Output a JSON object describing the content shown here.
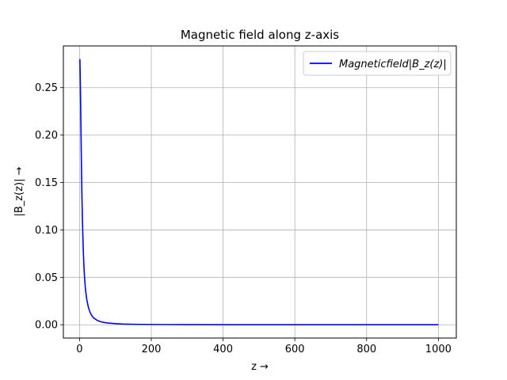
{
  "chart_data": {
    "type": "line",
    "title": "Magnetic field along z-axis",
    "xlabel": "z →",
    "ylabel": "|B_z(z)| →",
    "xlim": [
      -45,
      1050
    ],
    "ylim": [
      -0.014,
      0.294
    ],
    "xticks": [
      0,
      200,
      400,
      600,
      800,
      1000
    ],
    "yticks": [
      0.0,
      0.05,
      0.1,
      0.15,
      0.2,
      0.25
    ],
    "xtick_labels": [
      "0",
      "200",
      "400",
      "600",
      "800",
      "1000"
    ],
    "ytick_labels": [
      "0.00",
      "0.05",
      "0.10",
      "0.15",
      "0.20",
      "0.25"
    ],
    "grid": true,
    "legend": "top-right",
    "series": [
      {
        "name": "Magneticfield|B_z(z)|",
        "color": "#0000ff",
        "x": [
          1,
          2,
          3,
          4,
          5,
          6,
          7,
          8,
          10,
          12,
          14,
          16,
          18,
          20,
          25,
          30,
          35,
          40,
          50,
          60,
          70,
          80,
          100,
          120,
          150,
          200,
          250,
          300,
          400,
          500,
          600,
          700,
          800,
          900,
          1000
        ],
        "y": [
          0.28,
          0.262,
          0.236,
          0.207,
          0.179,
          0.153,
          0.131,
          0.112,
          0.084,
          0.064,
          0.05,
          0.04,
          0.033,
          0.027,
          0.018,
          0.0125,
          0.0092,
          0.007,
          0.0045,
          0.0031,
          0.0023,
          0.0018,
          0.0012,
          0.0008,
          0.0005,
          0.0003,
          0.0002,
          0.00013,
          7e-05,
          4e-05,
          3e-05,
          2e-05,
          1.5e-05,
          1e-05,
          8e-06
        ]
      }
    ]
  }
}
